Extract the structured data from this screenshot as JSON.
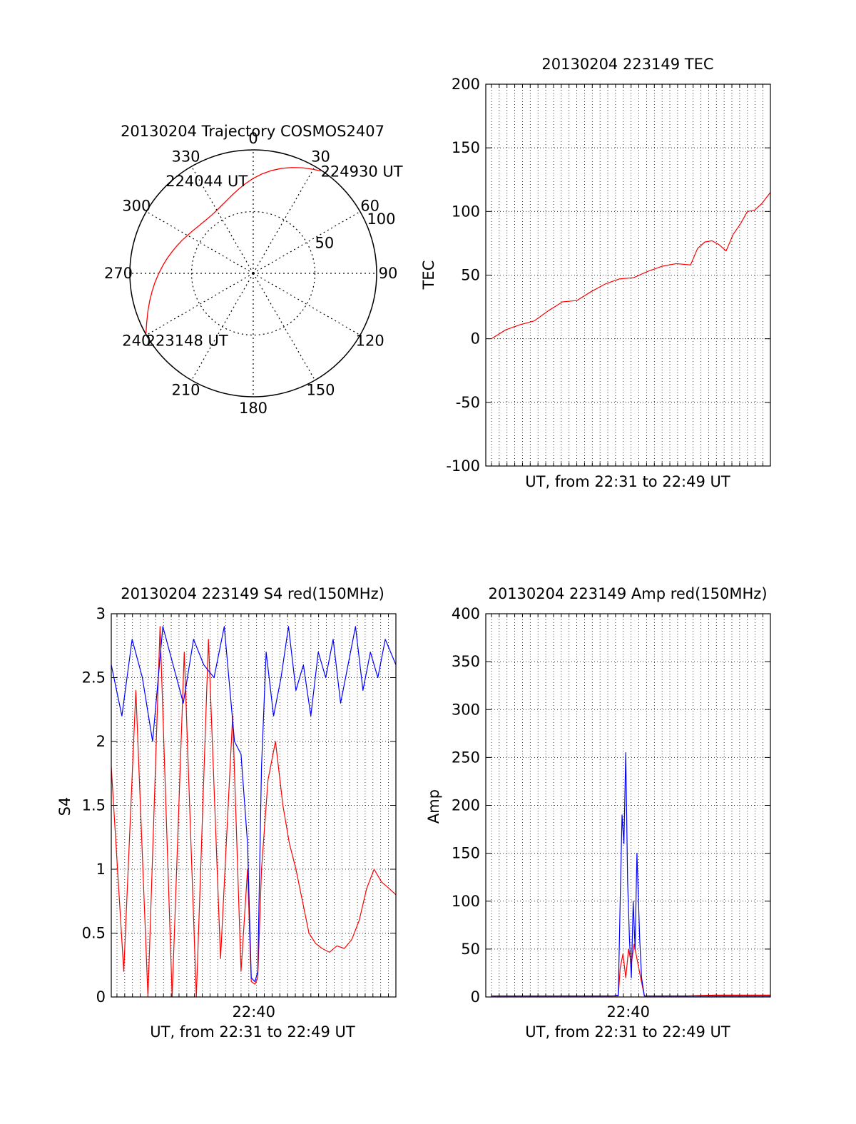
{
  "chart_data": [
    {
      "id": "polar",
      "type": "scatter",
      "projection": "polar",
      "title": "20130204 Trajectory COSMOS2407",
      "azimuth_labels": [
        "0",
        "30",
        "60",
        "90",
        "120",
        "150",
        "180",
        "210",
        "240",
        "270",
        "300",
        "330"
      ],
      "radius_labels": [
        "50",
        "100"
      ],
      "radius_label_azimuth_deg": 67,
      "rmax": 100,
      "rings": [
        50,
        100
      ],
      "trajectory_color": "#ff0000",
      "trajectory": {
        "azimuth_deg": [
          240.9,
          245,
          250,
          255,
          260,
          265,
          270,
          275,
          280,
          285,
          290,
          295,
          300,
          305,
          310,
          315,
          320,
          325,
          330,
          335,
          340,
          345,
          350,
          355,
          0,
          5,
          10,
          15,
          20,
          25,
          30,
          33.4
        ],
        "elevation_deg": [
          0.55,
          4.7,
          9.1,
          13.1,
          16.8,
          20.2,
          23.5,
          26.5,
          29.3,
          32.0,
          34.3,
          36.5,
          38.5,
          40.0,
          41.3,
          42.0,
          42.3,
          42.0,
          41.0,
          39.4,
          37.2,
          34.3,
          30.9,
          27.1,
          23.1,
          19.2,
          15.5,
          12.0,
          8.8,
          5.7,
          2.7,
          0.7
        ]
      },
      "annotations": [
        {
          "text": "224930 UT",
          "azimuth_deg": 33.4,
          "elevation_deg": 0.7
        },
        {
          "text": "224044 UT",
          "azimuth_deg": 318,
          "elevation_deg": 42.3
        },
        {
          "text": "223148 UT",
          "azimuth_deg": 240.9,
          "elevation_deg": 0.55
        }
      ]
    },
    {
      "id": "tec",
      "type": "line",
      "title": "20130204 223149 TEC",
      "xlabel": "UT, from 22:31 to 22:49 UT",
      "ylabel": "TEC",
      "xlim": [
        22.5136,
        22.8194
      ],
      "ylim": [
        -100,
        200
      ],
      "yticks": [
        "-100",
        "-50",
        "0",
        "50",
        "100",
        "150",
        "200"
      ],
      "xticks": [],
      "grid": true,
      "series": [
        {
          "color": "#ff0000",
          "x": [
            22.5197,
            22.535,
            22.5503,
            22.5656,
            22.5808,
            22.5961,
            22.6114,
            22.6267,
            22.6419,
            22.6572,
            22.6725,
            22.6878,
            22.7031,
            22.7183,
            22.7336,
            22.7412,
            22.7489,
            22.7565,
            22.7641,
            22.7718,
            22.7794,
            22.787,
            22.7947,
            22.8023,
            22.8099,
            22.8141,
            22.8194
          ],
          "y": [
            0,
            7,
            11,
            14,
            22,
            29,
            30,
            37,
            43,
            47,
            48,
            53,
            57,
            59,
            58,
            71,
            76,
            77,
            74,
            69,
            82,
            90,
            100,
            101,
            106,
            110,
            115
          ]
        }
      ]
    },
    {
      "id": "s4",
      "type": "line",
      "title": "20130204 223149 S4 red(150MHz)",
      "xlabel": "UT, from 22:31 to 22:49 UT",
      "ylabel": "S4",
      "xlim": [
        22.5136,
        22.8194
      ],
      "ylim": [
        0,
        3
      ],
      "yticks": [
        "0",
        "0.5",
        "1",
        "1.5",
        "2",
        "2.5",
        "3"
      ],
      "xticks": [
        {
          "value": 22.6667,
          "label": "22:40"
        }
      ],
      "grid": true,
      "series": [
        {
          "color": "#ff0000",
          "x": [
            22.5136,
            22.527,
            22.54,
            22.553,
            22.566,
            22.579,
            22.592,
            22.605,
            22.618,
            22.631,
            22.644,
            22.653,
            22.66,
            22.664,
            22.668,
            22.671,
            22.675,
            22.682,
            22.69,
            22.698,
            22.705,
            22.712,
            22.719,
            22.726,
            22.733,
            22.74,
            22.748,
            22.756,
            22.764,
            22.772,
            22.78,
            22.788,
            22.796,
            22.804,
            22.812,
            22.8194
          ],
          "y": [
            1.8,
            0.2,
            2.4,
            0.0,
            2.9,
            0.0,
            2.7,
            0.0,
            2.8,
            0.3,
            2.2,
            0.2,
            1.0,
            0.12,
            0.1,
            0.15,
            1.0,
            1.7,
            2.0,
            1.5,
            1.2,
            1.0,
            0.75,
            0.5,
            0.42,
            0.38,
            0.35,
            0.4,
            0.38,
            0.45,
            0.6,
            0.85,
            1.0,
            0.9,
            0.85,
            0.8
          ]
        },
        {
          "color": "#0000ff",
          "x": [
            22.5136,
            22.525,
            22.536,
            22.547,
            22.558,
            22.569,
            22.58,
            22.591,
            22.602,
            22.613,
            22.624,
            22.635,
            22.646,
            22.653,
            22.66,
            22.664,
            22.668,
            22.671,
            22.675,
            22.68,
            22.688,
            22.696,
            22.704,
            22.712,
            22.72,
            22.728,
            22.736,
            22.744,
            22.752,
            22.76,
            22.768,
            22.776,
            22.784,
            22.792,
            22.8,
            22.808,
            22.8194
          ],
          "y": [
            2.6,
            2.2,
            2.8,
            2.5,
            2.0,
            2.9,
            2.6,
            2.3,
            2.8,
            2.6,
            2.5,
            2.9,
            2.0,
            1.9,
            1.2,
            0.15,
            0.12,
            0.2,
            1.8,
            2.7,
            2.2,
            2.5,
            2.9,
            2.4,
            2.6,
            2.2,
            2.7,
            2.5,
            2.8,
            2.3,
            2.6,
            2.9,
            2.4,
            2.7,
            2.5,
            2.8,
            2.6
          ]
        }
      ]
    },
    {
      "id": "amp",
      "type": "line",
      "title": "20130204 223149 Amp red(150MHz)",
      "xlabel": "UT, from 22:31 to 22:49 UT",
      "ylabel": "Amp",
      "xlim": [
        22.5136,
        22.8194
      ],
      "ylim": [
        0,
        400
      ],
      "yticks": [
        "0",
        "50",
        "100",
        "150",
        "200",
        "250",
        "300",
        "350",
        "400"
      ],
      "xticks": [
        {
          "value": 22.6667,
          "label": "22:40"
        }
      ],
      "grid": true,
      "series": [
        {
          "color": "#ff0000",
          "x": [
            22.5197,
            22.65,
            22.656,
            22.658,
            22.661,
            22.664,
            22.667,
            22.67,
            22.673,
            22.676,
            22.68,
            22.684,
            22.73,
            22.76,
            22.8194
          ],
          "y": [
            1,
            1,
            1,
            30,
            45,
            20,
            50,
            35,
            55,
            40,
            20,
            1,
            1,
            2,
            2
          ]
        },
        {
          "color": "#0000ff",
          "x": [
            22.5197,
            22.65,
            22.656,
            22.658,
            22.66,
            22.662,
            22.664,
            22.666,
            22.668,
            22.67,
            22.672,
            22.674,
            22.676,
            22.679,
            22.681,
            22.684,
            22.73,
            22.8194
          ],
          "y": [
            1,
            1,
            2,
            100,
            190,
            160,
            255,
            120,
            60,
            20,
            100,
            50,
            150,
            60,
            20,
            1,
            1,
            1
          ]
        }
      ]
    }
  ]
}
